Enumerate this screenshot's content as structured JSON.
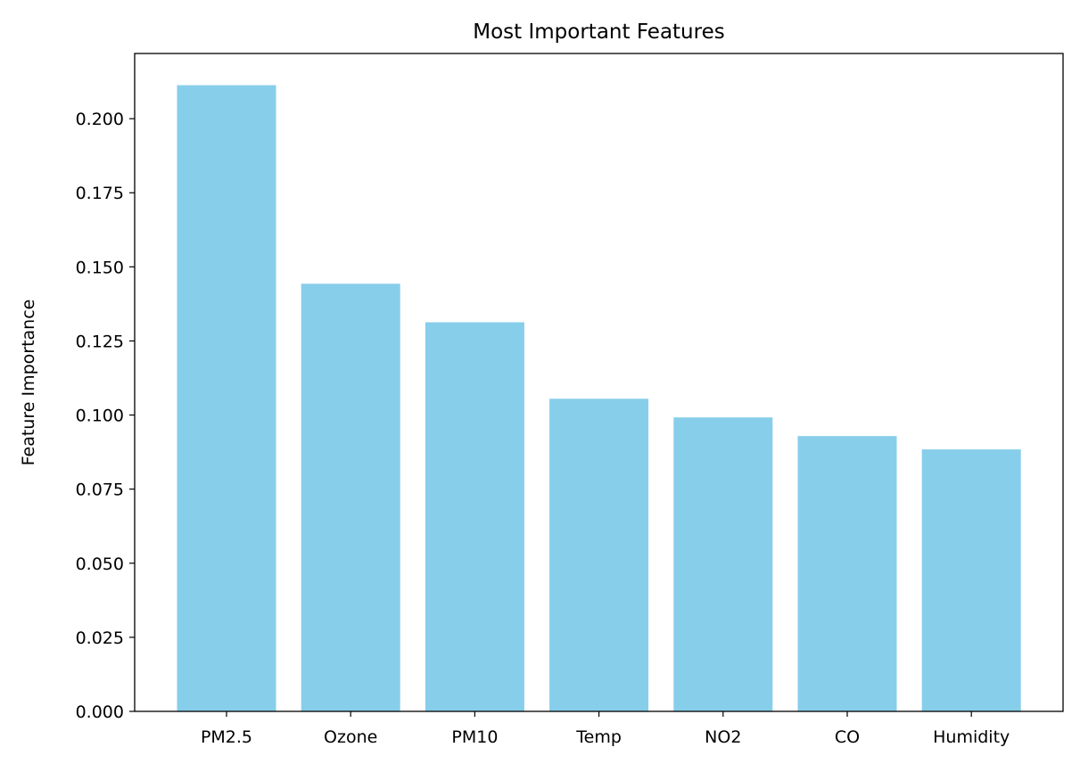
{
  "chart_data": {
    "type": "bar",
    "title": "Most Important Features",
    "xlabel": "",
    "ylabel": "Feature Importance",
    "categories": [
      "PM2.5",
      "Ozone",
      "PM10",
      "Temp",
      "NO2",
      "CO",
      "Humidity"
    ],
    "values": [
      0.2113,
      0.1443,
      0.1313,
      0.1055,
      0.0992,
      0.0929,
      0.0884
    ],
    "ylim": [
      0,
      0.222
    ],
    "yticks": [
      0.0,
      0.025,
      0.05,
      0.075,
      0.1,
      0.125,
      0.15,
      0.175,
      0.2
    ],
    "ytick_labels": [
      "0.000",
      "0.025",
      "0.050",
      "0.075",
      "0.100",
      "0.125",
      "0.150",
      "0.175",
      "0.200"
    ],
    "grid": false,
    "legend": "none",
    "bar_color": "#87CEEB"
  }
}
